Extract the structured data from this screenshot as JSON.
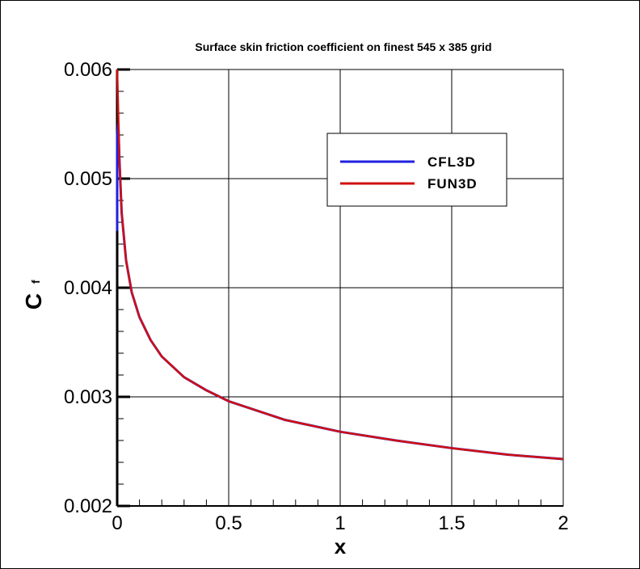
{
  "chart_data": {
    "type": "line",
    "title": "Surface skin friction coefficient on finest 545 x 385 grid",
    "xlabel": "x",
    "ylabel": "C",
    "ylabel_subscript": "f",
    "xlim": [
      0,
      2
    ],
    "ylim": [
      0.002,
      0.006
    ],
    "xticks": [
      "0",
      "0.5",
      "1",
      "1.5",
      "2"
    ],
    "yticks": [
      "0.002",
      "0.003",
      "0.004",
      "0.005",
      "0.006"
    ],
    "grid": true,
    "legend_position": "top-right",
    "series": [
      {
        "name": "CFL3D",
        "color": "#2020e0",
        "x": [
          0,
          0,
          0.005,
          0.01,
          0.02,
          0.04,
          0.065,
          0.1,
          0.15,
          0.2,
          0.3,
          0.4,
          0.5,
          0.75,
          1,
          1.25,
          1.5,
          1.75,
          2
        ],
        "y": [
          0.00452,
          0.0054,
          0.0055,
          0.00518,
          0.00469,
          0.00425,
          0.00396,
          0.00373,
          0.00352,
          0.00337,
          0.00318,
          0.00306,
          0.00296,
          0.00279,
          0.00268,
          0.0026,
          0.00253,
          0.00247,
          0.00243
        ]
      },
      {
        "name": "FUN3D",
        "color": "#d01010",
        "x": [
          0,
          0.005,
          0.01,
          0.02,
          0.04,
          0.065,
          0.1,
          0.15,
          0.2,
          0.3,
          0.4,
          0.5,
          0.75,
          1,
          1.25,
          1.5,
          1.75,
          2
        ],
        "y": [
          0.006,
          0.0056,
          0.00518,
          0.00469,
          0.00425,
          0.00396,
          0.00373,
          0.00352,
          0.00337,
          0.00318,
          0.00306,
          0.00296,
          0.00279,
          0.00268,
          0.0026,
          0.00253,
          0.00247,
          0.00243
        ]
      }
    ]
  }
}
